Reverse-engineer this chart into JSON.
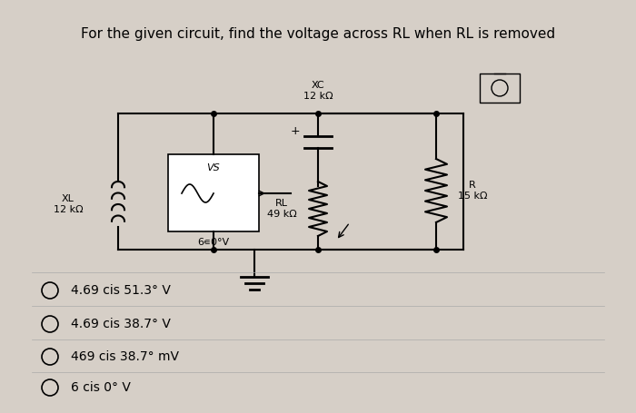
{
  "title": "For the given circuit, find the voltage across RL when RL is removed",
  "title_fontsize": 11,
  "bg_color": "#d6cfc7",
  "text_color": "#000000",
  "options": [
    "4.69 cis 51.3° V",
    "4.69 cis 38.7° V",
    "469 cis 38.7° mV",
    "6 cis 0° V"
  ],
  "circuit": {
    "XL_label": "XL\n12 kΩ",
    "VS_label": "VS",
    "source_label": "6∊0°V",
    "XC_label": "XC\n12 kΩ",
    "RL_label": "RL\n49 kΩ",
    "R_label": "R\n15 kΩ"
  }
}
